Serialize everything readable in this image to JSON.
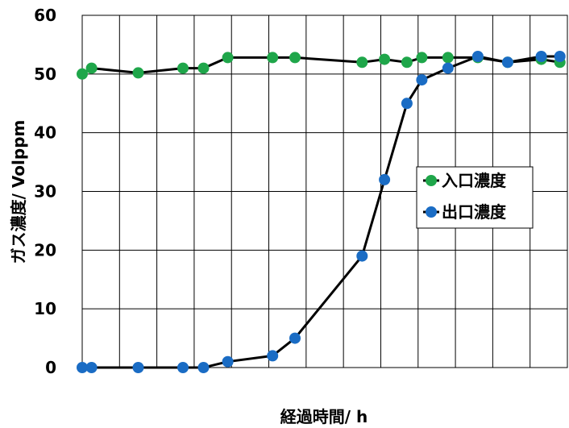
{
  "chart_data": {
    "type": "line",
    "title": "",
    "xlabel": "経過時間/ h",
    "ylabel": "ガス濃度/ Volppm",
    "ylim": [
      0,
      60
    ],
    "yticks": [
      "0",
      "10",
      "20",
      "30",
      "40",
      "50",
      "60"
    ],
    "xlim": [
      0,
      13
    ],
    "grid": true,
    "legend_position": "right-middle",
    "series": [
      {
        "name": "入口濃度",
        "color": "#1fa64a",
        "x": [
          0,
          0.25,
          1.5,
          2.7,
          3.25,
          3.9,
          5.1,
          5.7,
          7.5,
          8.1,
          8.7,
          9.1,
          9.8,
          10.6,
          11.4,
          12.3,
          12.8
        ],
        "y": [
          50,
          51,
          50.2,
          51,
          51,
          52.8,
          52.8,
          52.8,
          52,
          52.5,
          52,
          52.8,
          52.8,
          52.8,
          52,
          52.5,
          52
        ]
      },
      {
        "name": "出口濃度",
        "color": "#1a6cc4",
        "x": [
          0,
          0.25,
          1.5,
          2.7,
          3.25,
          3.9,
          5.1,
          5.7,
          7.5,
          8.1,
          8.7,
          9.1,
          9.8,
          10.6,
          11.4,
          12.3,
          12.8
        ],
        "y": [
          0,
          0,
          0,
          0,
          0,
          1,
          2,
          5,
          19,
          32,
          45,
          49,
          51,
          53,
          52,
          53,
          53
        ]
      }
    ]
  }
}
